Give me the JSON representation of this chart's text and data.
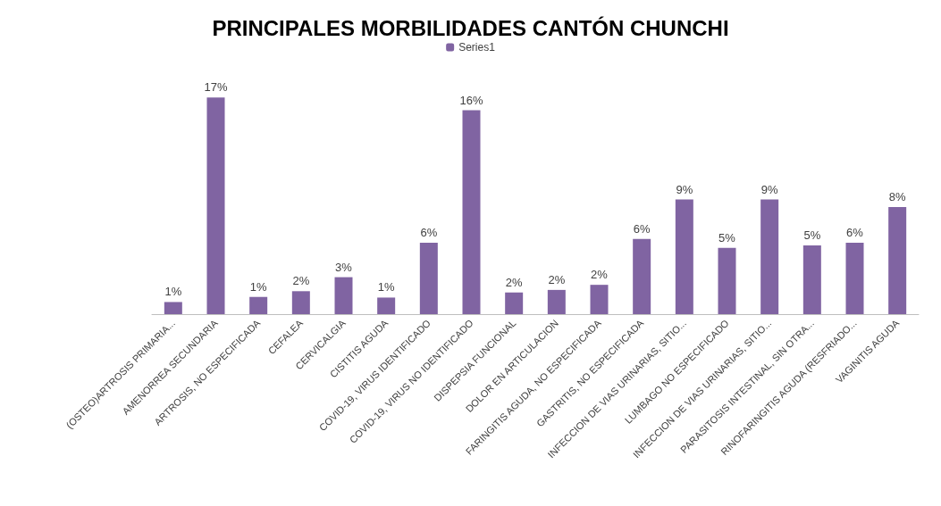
{
  "chart_data": {
    "type": "bar",
    "title": "PRINCIPALES MORBILIDADES CANTÓN CHUNCHI",
    "categories": [
      "(OSTEO)ARTROSIS PRIMARIA...",
      "AMENORREA SECUNDARIA",
      "ARTROSIS, NO ESPECIFICADA",
      "CEFALEA",
      "CERVICALGIA",
      "CISTITIS AGUDA",
      "COVID-19, VIRUS IDENTIFICADO",
      "COVID-19, VIRUS NO IDENTIFICADO",
      "DISPEPSIA FUNCIONAL",
      "DOLOR EN ARTICULACION",
      "FARINGITIS AGUDA, NO ESPECIFICADA",
      "GASTRITIS, NO ESPECIFICADA",
      "INFECCION DE VIAS URINARIAS, SITIO...",
      "LUMBAGO NO ESPECIFICADO",
      "INFECCION DE VIAS URINARIAS, SITIO...",
      "PARASITOSIS INTESTINAL, SIN OTRA...",
      "RINOFARINGITIS AGUDA (RESFRIADO...",
      "VAGINITIS AGUDA"
    ],
    "series": [
      {
        "name": "Series1",
        "color": "#8064a2",
        "values": [
          0.95,
          17,
          1.35,
          1.8,
          2.9,
          1.3,
          5.6,
          16,
          1.7,
          1.9,
          2.3,
          5.9,
          9,
          5.2,
          9,
          5.4,
          5.6,
          8.4
        ],
        "value_labels": [
          "1%",
          "17%",
          "1%",
          "2%",
          "3%",
          "1%",
          "6%",
          "16%",
          "2%",
          "2%",
          "2%",
          "6%",
          "9%",
          "5%",
          "9%",
          "5%",
          "6%",
          "8%"
        ]
      }
    ],
    "legend": "top"
  }
}
